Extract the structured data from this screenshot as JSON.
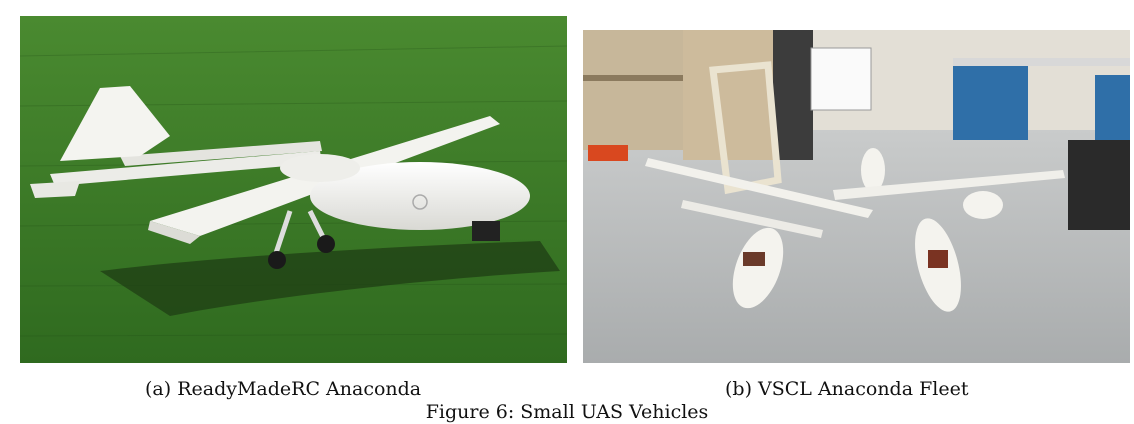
{
  "figure": {
    "panel_a": {
      "caption": "(a) ReadyMadeRC Anaconda",
      "colors": {
        "grass": "#3f7a2a",
        "grass_dark": "#2d5c1e",
        "airframe": "#f2f2ef",
        "shadow": "#1d3a12"
      }
    },
    "panel_b": {
      "caption": "(b) VSCL Anaconda Fleet",
      "colors": {
        "floor": "#b9bcbd",
        "wall": "#e9e6df",
        "cabinet": "#2f6fa8",
        "airframe": "#f4f3ee"
      }
    },
    "title": "Figure 6: Small UAS Vehicles"
  }
}
